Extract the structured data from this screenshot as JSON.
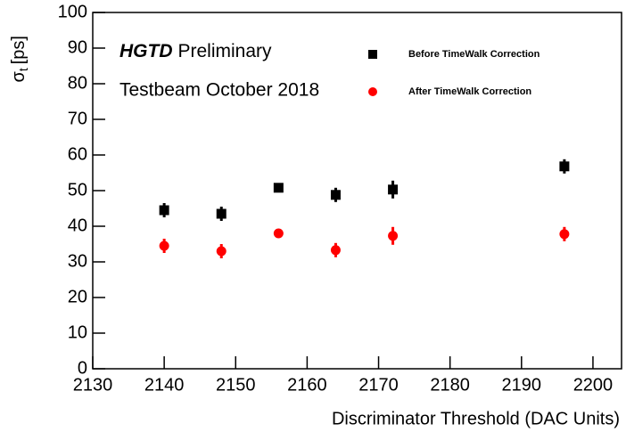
{
  "chart_data": {
    "type": "scatter",
    "ylabel": {
      "symbol": "σ",
      "subscript": "t",
      "unit": "[ps]"
    },
    "xlabel": "Discriminator Threshold (DAC Units)",
    "annotations": {
      "experiment": "HGTD",
      "status": "Preliminary",
      "campaign": "Testbeam October 2018"
    },
    "x": [
      2140,
      2148,
      2156,
      2164,
      2172,
      2196
    ],
    "series": [
      {
        "name": "Before TimeWalk Correction",
        "color": "#000000",
        "marker": "square",
        "values": [
          44.5,
          43.5,
          50.8,
          48.8,
          50.3,
          56.8
        ],
        "errors": [
          2,
          2,
          0.7,
          2,
          2.5,
          2
        ]
      },
      {
        "name": "After TimeWalk Correction",
        "color": "#ff0000",
        "marker": "circle",
        "values": [
          34.5,
          33,
          38,
          33.3,
          37.3,
          37.8
        ],
        "errors": [
          2,
          2,
          0.5,
          2,
          2.5,
          2
        ]
      }
    ],
    "xlim": [
      2130,
      2204
    ],
    "xticks": [
      2130,
      2140,
      2150,
      2160,
      2170,
      2180,
      2190,
      2200
    ],
    "ylim": [
      0,
      100
    ],
    "yticks": [
      0,
      10,
      20,
      30,
      40,
      50,
      60,
      70,
      80,
      90,
      100
    ]
  }
}
